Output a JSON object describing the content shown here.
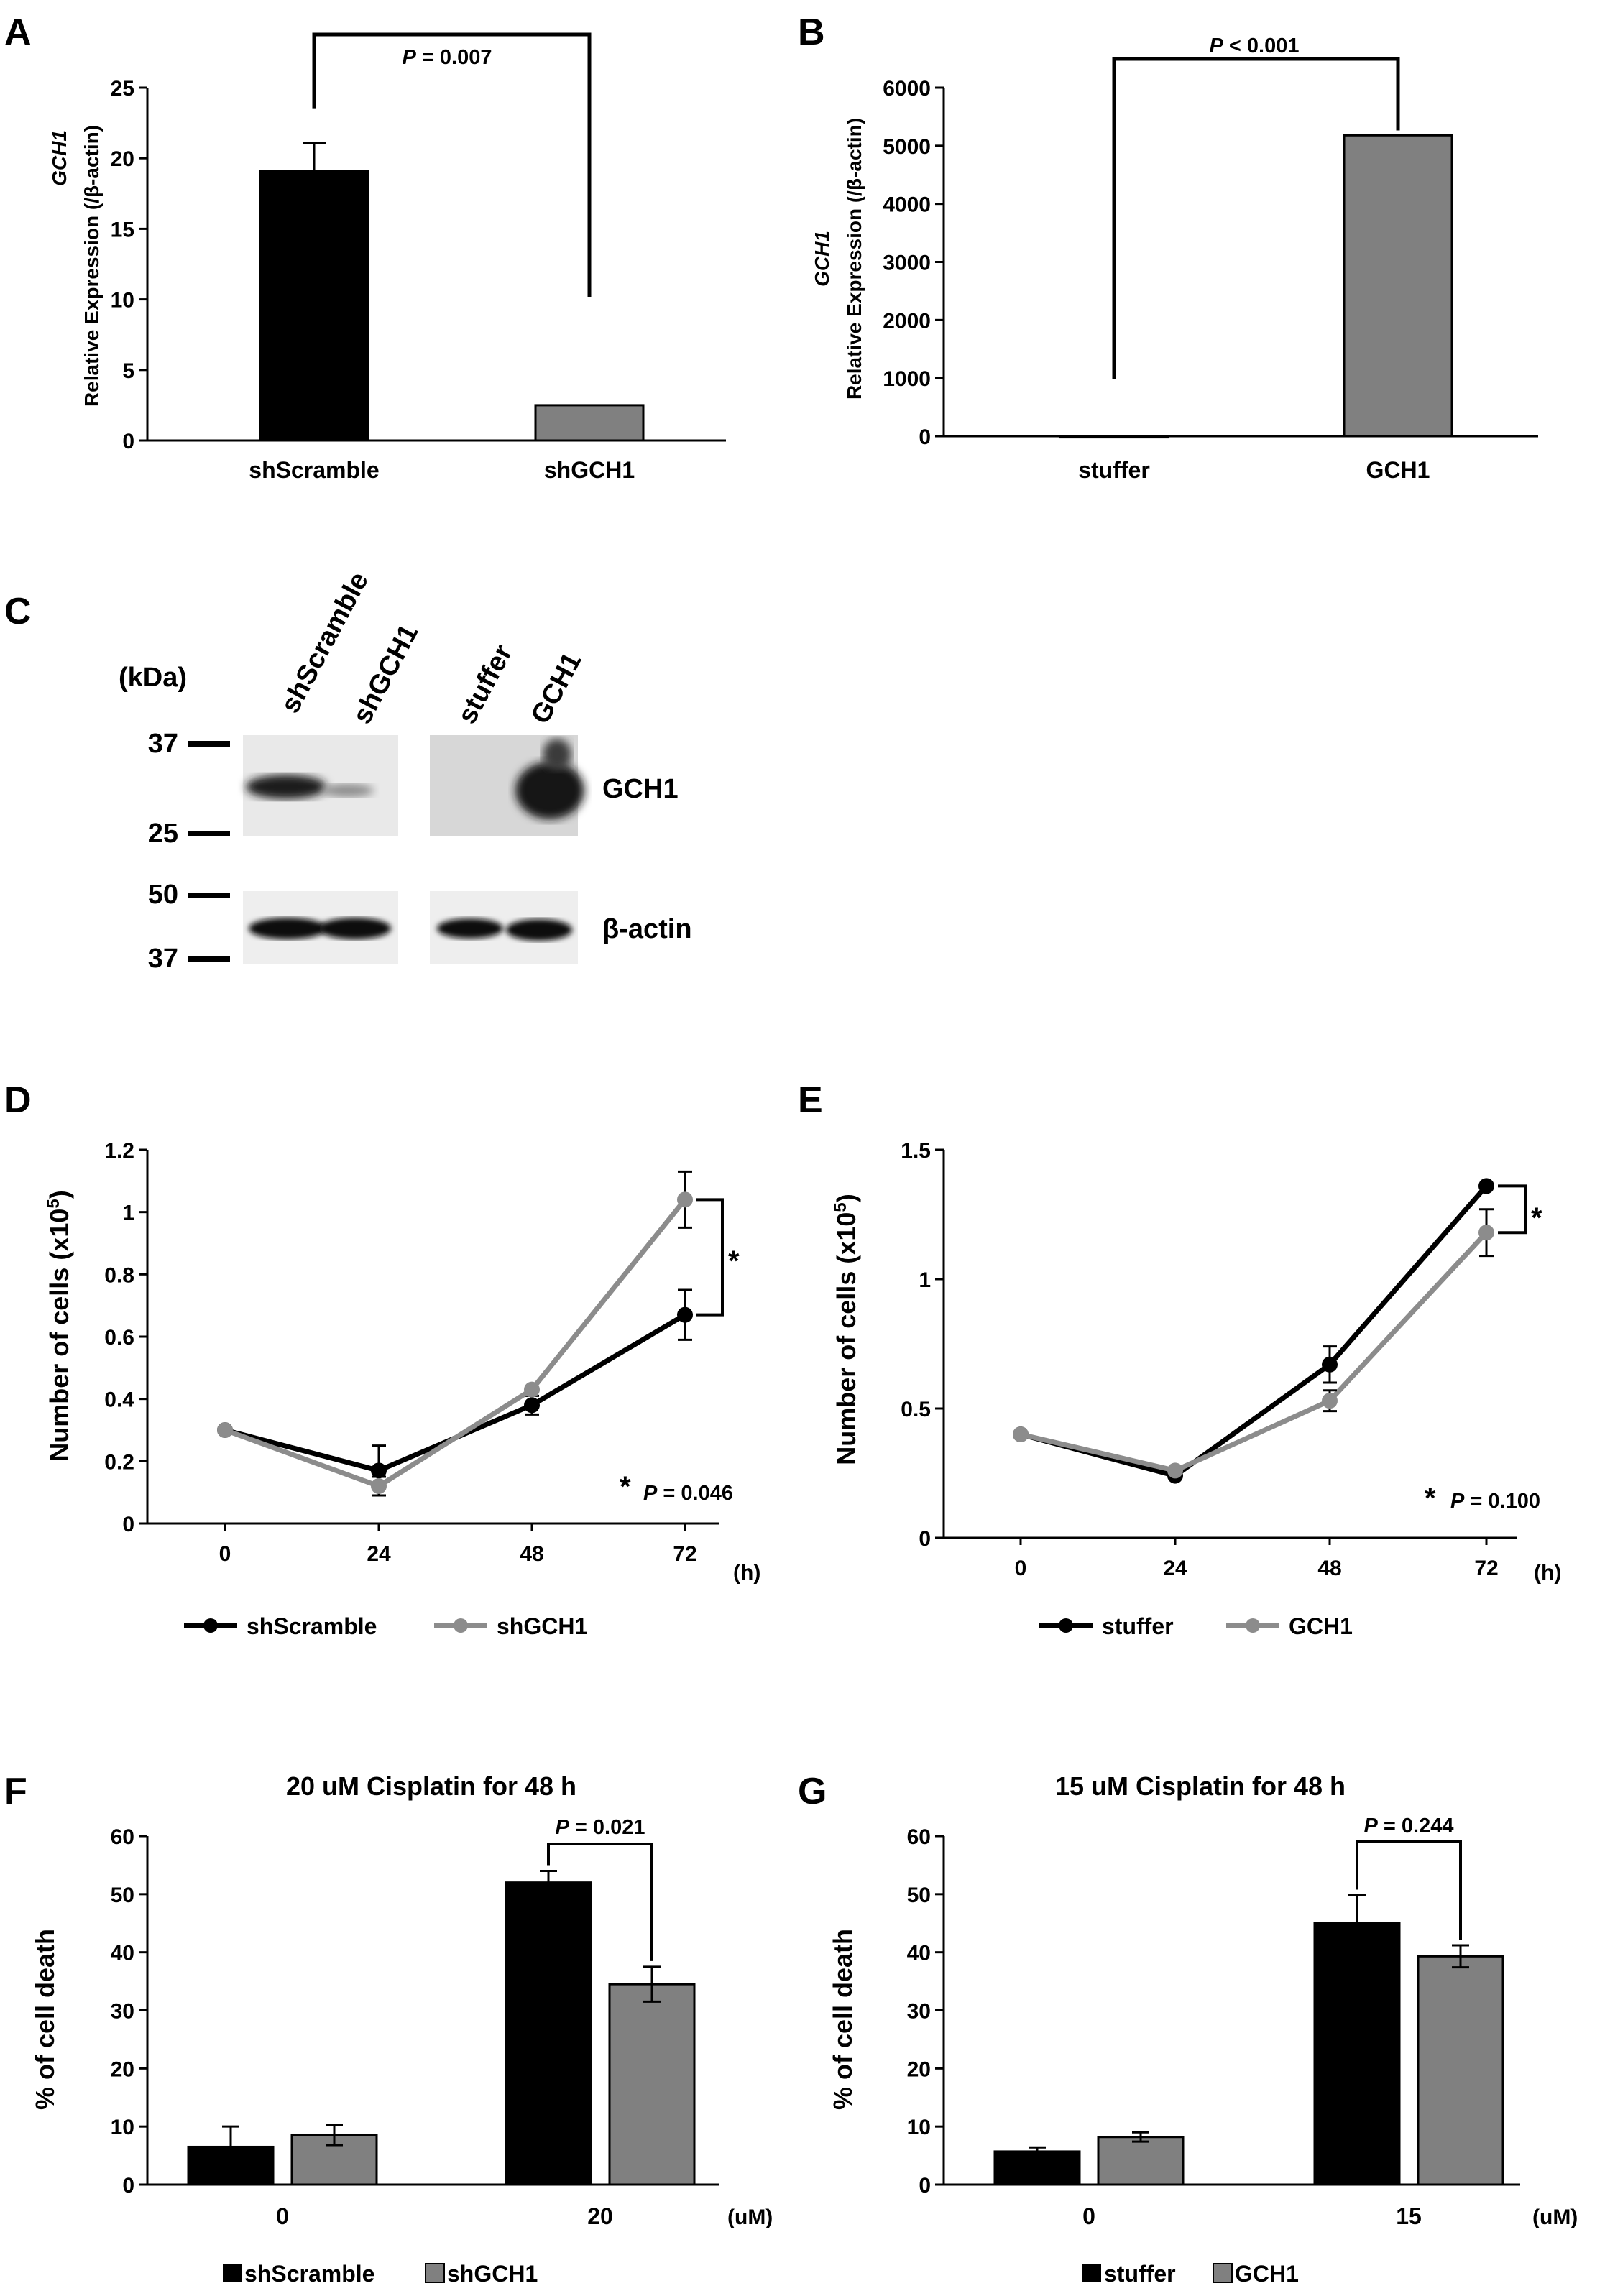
{
  "figure": {
    "panel_labels": [
      "A",
      "B",
      "C",
      "D",
      "E",
      "F",
      "G"
    ],
    "colors": {
      "black": "#000000",
      "gray": "#808080",
      "line_gray": "#8c8c8c"
    }
  },
  "blot": {
    "unit_label": "(kDa)",
    "lanes": [
      "shScramble",
      "shGCH1",
      "stuffer",
      "GCH1"
    ],
    "markers_top": [
      "37",
      "25"
    ],
    "markers_bottom": [
      "50",
      "37"
    ],
    "band_labels": [
      "GCH1",
      "β-actin"
    ]
  },
  "chart_data": [
    {
      "panel": "A",
      "type": "bar",
      "ylabel_gene": "GCH1",
      "ylabel": "Relative Expression (/β-actin)",
      "ylim": [
        0,
        25
      ],
      "yticks": [
        "0",
        "5",
        "10",
        "15",
        "20",
        "25"
      ],
      "categories": [
        "shScramble",
        "shGCH1"
      ],
      "values": [
        19.1,
        2.5
      ],
      "errors": [
        2.0,
        0.1
      ],
      "bar_colors": [
        "#000000",
        "#808080"
      ],
      "annotation_p": "= 0.007"
    },
    {
      "panel": "B",
      "type": "bar",
      "ylabel_gene": "GCH1",
      "ylabel": "Relative Expression (/β-actin)",
      "ylim": [
        0,
        6000
      ],
      "yticks": [
        "0",
        "1000",
        "2000",
        "3000",
        "4000",
        "5000",
        "6000"
      ],
      "categories": [
        "stuffer",
        "GCH1"
      ],
      "values": [
        5,
        5180
      ],
      "errors": [
        0,
        10
      ],
      "bar_colors": [
        "#000000",
        "#808080"
      ],
      "annotation_p": "< 0.001"
    },
    {
      "panel": "D",
      "type": "line",
      "ylabel": "Number of cells (x10",
      "ylabel_sup": "5",
      "ylabel_close": ")",
      "ylim": [
        0,
        1.2
      ],
      "yticks": [
        "0",
        "0.2",
        "0.4",
        "0.6",
        "0.8",
        "1",
        "1.2"
      ],
      "x": [
        "0",
        "24",
        "48",
        "72"
      ],
      "x_unit": "(h)",
      "series": [
        {
          "name": "shScramble",
          "color": "#000000",
          "values": [
            0.3,
            0.17,
            0.38,
            0.67
          ],
          "errors": [
            0,
            0.08,
            0.03,
            0.08
          ]
        },
        {
          "name": "shGCH1",
          "color": "#8c8c8c",
          "values": [
            0.3,
            0.12,
            0.43,
            1.04
          ],
          "errors": [
            0,
            0.03,
            0,
            0.09
          ]
        }
      ],
      "star": "*",
      "annotation_p": "= 0.046"
    },
    {
      "panel": "E",
      "type": "line",
      "ylabel": "Number of cells (x10",
      "ylabel_sup": "5",
      "ylabel_close": ")",
      "ylim": [
        0,
        1.5
      ],
      "yticks": [
        "0",
        "0.5",
        "1",
        "1.5"
      ],
      "x": [
        "0",
        "24",
        "48",
        "72"
      ],
      "x_unit": "(h)",
      "series": [
        {
          "name": "stuffer",
          "color": "#000000",
          "values": [
            0.4,
            0.24,
            0.67,
            1.36
          ],
          "errors": [
            0,
            0,
            0.07,
            0
          ]
        },
        {
          "name": "GCH1",
          "color": "#8c8c8c",
          "values": [
            0.4,
            0.26,
            0.53,
            1.18
          ],
          "errors": [
            0,
            0,
            0.04,
            0.09
          ]
        }
      ],
      "star": "*",
      "annotation_p": "= 0.100"
    },
    {
      "panel": "F",
      "type": "bar",
      "title": "20 uM Cisplatin for 48 h",
      "ylabel": "% of cell death",
      "ylim": [
        0,
        60
      ],
      "yticks": [
        "0",
        "10",
        "20",
        "30",
        "40",
        "50",
        "60"
      ],
      "categories": [
        "0",
        "20"
      ],
      "x_unit": "(uM)",
      "series": [
        {
          "name": "shScramble",
          "color": "#000000",
          "values": [
            6.5,
            52.0
          ],
          "errors": [
            3.5,
            2.0
          ]
        },
        {
          "name": "shGCH1",
          "color": "#808080",
          "values": [
            8.5,
            34.5
          ],
          "errors": [
            1.7,
            3.0
          ]
        }
      ],
      "annotation_p": "= 0.021"
    },
    {
      "panel": "G",
      "type": "bar",
      "title": "15 uM Cisplatin for 48 h",
      "ylabel": "% of cell death",
      "ylim": [
        0,
        60
      ],
      "yticks": [
        "0",
        "10",
        "20",
        "30",
        "40",
        "50",
        "60"
      ],
      "categories": [
        "0",
        "15"
      ],
      "x_unit": "(uM)",
      "series": [
        {
          "name": "stuffer",
          "color": "#000000",
          "values": [
            5.7,
            45.0
          ],
          "errors": [
            0.7,
            4.8
          ]
        },
        {
          "name": "GCH1",
          "color": "#808080",
          "values": [
            8.2,
            39.3
          ],
          "errors": [
            0.8,
            1.9
          ]
        }
      ],
      "annotation_p": "= 0.244"
    }
  ]
}
